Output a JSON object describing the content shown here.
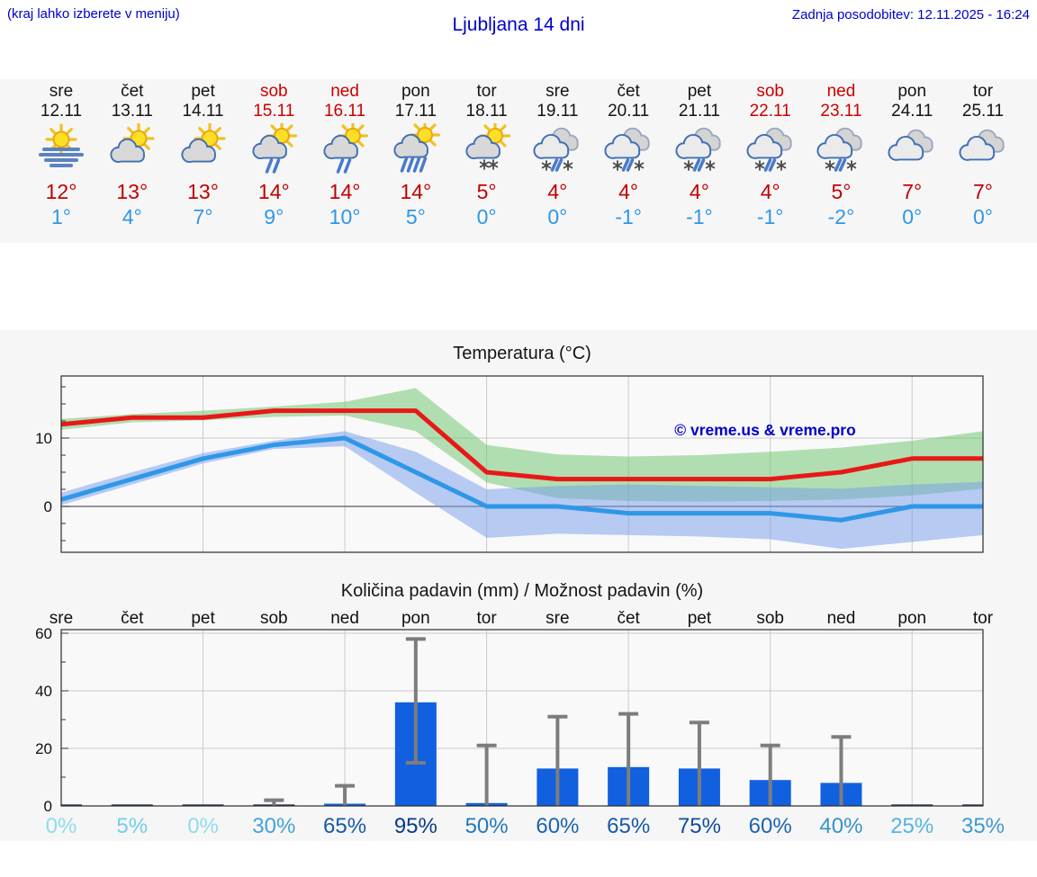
{
  "header": {
    "hint": "(kraj lahko izberete v meniju)",
    "title": "Ljubljana 14 dni",
    "updated": "Zadnja posodobitev: 12.11.2025 - 16:24"
  },
  "forecast": {
    "days": [
      {
        "name": "sre",
        "date": "12.11",
        "weekend": false,
        "icon": "fog-sun",
        "tmax": "12°",
        "tmin": "1°"
      },
      {
        "name": "čet",
        "date": "13.11",
        "weekend": false,
        "icon": "partly-cloudy",
        "tmax": "13°",
        "tmin": "4°"
      },
      {
        "name": "pet",
        "date": "14.11",
        "weekend": false,
        "icon": "partly-cloudy",
        "tmax": "13°",
        "tmin": "7°"
      },
      {
        "name": "sob",
        "date": "15.11",
        "weekend": true,
        "icon": "rain-sun",
        "tmax": "14°",
        "tmin": "9°"
      },
      {
        "name": "ned",
        "date": "16.11",
        "weekend": true,
        "icon": "rain-sun",
        "tmax": "14°",
        "tmin": "10°"
      },
      {
        "name": "pon",
        "date": "17.11",
        "weekend": false,
        "icon": "heavy-rain-sun",
        "tmax": "14°",
        "tmin": "5°"
      },
      {
        "name": "tor",
        "date": "18.11",
        "weekend": false,
        "icon": "snow-sun",
        "tmax": "5°",
        "tmin": "0°"
      },
      {
        "name": "sre",
        "date": "19.11",
        "weekend": false,
        "icon": "sleet-clouds",
        "tmax": "4°",
        "tmin": "0°"
      },
      {
        "name": "čet",
        "date": "20.11",
        "weekend": false,
        "icon": "sleet-clouds",
        "tmax": "4°",
        "tmin": "-1°"
      },
      {
        "name": "pet",
        "date": "21.11",
        "weekend": false,
        "icon": "sleet-clouds",
        "tmax": "4°",
        "tmin": "-1°"
      },
      {
        "name": "sob",
        "date": "22.11",
        "weekend": true,
        "icon": "sleet-clouds",
        "tmax": "4°",
        "tmin": "-1°"
      },
      {
        "name": "ned",
        "date": "23.11",
        "weekend": true,
        "icon": "sleet-clouds",
        "tmax": "5°",
        "tmin": "-2°"
      },
      {
        "name": "pon",
        "date": "24.11",
        "weekend": false,
        "icon": "cloudy",
        "tmax": "7°",
        "tmin": "0°"
      },
      {
        "name": "tor",
        "date": "25.11",
        "weekend": false,
        "icon": "cloudy",
        "tmax": "7°",
        "tmin": "0°"
      }
    ]
  },
  "chart_data": [
    {
      "type": "line",
      "title": "Temperatura (°C)",
      "categories": [
        "sre",
        "čet",
        "pet",
        "sob",
        "ned",
        "pon",
        "tor",
        "sre",
        "čet",
        "pet",
        "sob",
        "ned",
        "pon",
        "tor"
      ],
      "series": [
        {
          "name": "max-temperature",
          "color": "#e81818",
          "band_color": "rgba(105,195,105,0.5)",
          "values": [
            12,
            13,
            13,
            14,
            14,
            14,
            5,
            4,
            4,
            4,
            4,
            5,
            7,
            7
          ],
          "band_hi": [
            12.8,
            13.5,
            14,
            14.6,
            15.3,
            17.3,
            9,
            7.6,
            7.3,
            7.5,
            8,
            8.6,
            9.6,
            11
          ],
          "band_lo": [
            11.2,
            12.3,
            12.6,
            13.1,
            13.3,
            11,
            3.5,
            1.2,
            0.8,
            0.7,
            0.8,
            1,
            1.6,
            2.6
          ]
        },
        {
          "name": "min-temperature",
          "color": "#2e97e8",
          "band_color": "rgba(115,155,235,0.5)",
          "values": [
            1,
            4,
            7,
            9,
            10,
            5,
            0,
            0,
            -1,
            -1,
            -1,
            -2,
            0,
            0
          ],
          "band_hi": [
            2,
            5,
            7.8,
            9.6,
            11,
            8,
            2.5,
            3,
            3.2,
            3,
            2.8,
            2.6,
            3.2,
            3.6
          ],
          "band_lo": [
            0.2,
            3.2,
            6.3,
            8.4,
            8.8,
            2,
            -4.6,
            -4,
            -4.2,
            -4.4,
            -4.8,
            -6.2,
            -5.2,
            -4.2
          ]
        }
      ],
      "ylim": [
        -6.6,
        19.2
      ],
      "yticks": [
        0,
        10
      ],
      "grid": "vertical-every-2-days",
      "watermark": "© vreme.us & vreme.pro"
    },
    {
      "type": "bar",
      "title": "Količina padavin (mm) / Možnost padavin (%)",
      "categories": [
        "sre",
        "čet",
        "pet",
        "sob",
        "ned",
        "pon",
        "tor",
        "sre",
        "čet",
        "pet",
        "sob",
        "ned",
        "pon",
        "tor"
      ],
      "values": [
        0,
        0,
        0,
        0,
        0.7,
        36,
        1,
        13,
        13.5,
        13,
        9,
        8,
        0,
        0
      ],
      "whisker_hi": [
        0,
        0,
        0,
        2,
        7,
        58,
        21,
        31,
        32,
        29,
        21,
        24,
        0,
        0
      ],
      "whisker_lo": [
        0,
        0,
        0,
        0,
        0,
        15,
        0,
        0,
        0,
        0,
        0,
        0,
        0,
        0
      ],
      "ylim": [
        0,
        61
      ],
      "yticks": [
        0,
        20,
        40,
        60
      ],
      "bar_color": "#1160e0",
      "whisker_color": "#7d7d7d",
      "probabilities": [
        {
          "label": "0%",
          "color": "#8edcec"
        },
        {
          "label": "5%",
          "color": "#70d0e8"
        },
        {
          "label": "0%",
          "color": "#8edcec"
        },
        {
          "label": "30%",
          "color": "#44a2d8"
        },
        {
          "label": "65%",
          "color": "#1659aa"
        },
        {
          "label": "95%",
          "color": "#093a8a"
        },
        {
          "label": "50%",
          "color": "#2478bc"
        },
        {
          "label": "60%",
          "color": "#1a64b2"
        },
        {
          "label": "65%",
          "color": "#1659aa"
        },
        {
          "label": "75%",
          "color": "#0f4c9e"
        },
        {
          "label": "60%",
          "color": "#1a64b2"
        },
        {
          "label": "40%",
          "color": "#3892cc"
        },
        {
          "label": "25%",
          "color": "#54b4e2"
        },
        {
          "label": "35%",
          "color": "#3e9ad2"
        }
      ]
    }
  ]
}
